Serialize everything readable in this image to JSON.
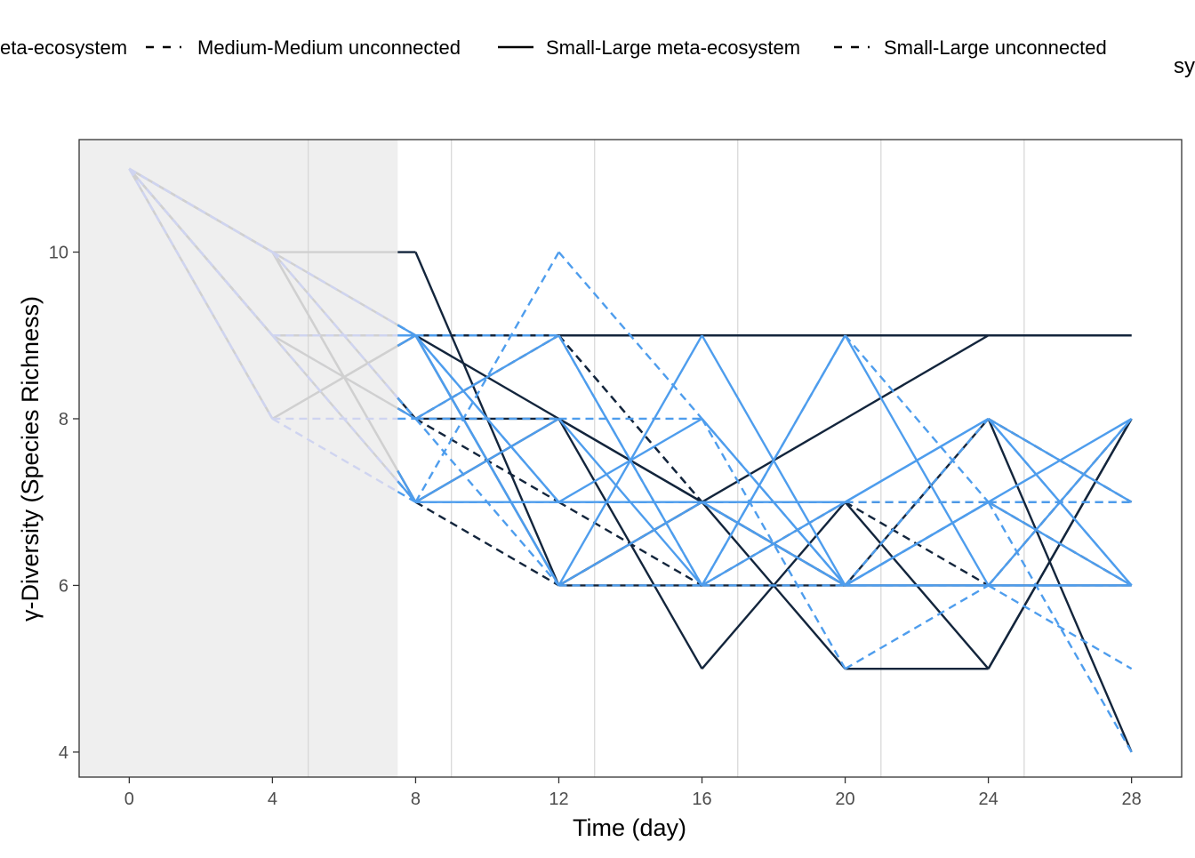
{
  "chart_data": {
    "type": "line",
    "xlabel": "Time (day)",
    "ylabel": "γ-Diversity (Species Richness)",
    "xlim": [
      -1.4,
      29.4
    ],
    "ylim": [
      3.7,
      11.35
    ],
    "x_ticks": [
      0,
      4,
      8,
      12,
      16,
      20,
      24,
      28
    ],
    "y_ticks": [
      4,
      6,
      8,
      10
    ],
    "x_minor_gridlines": [
      5,
      9,
      13,
      17,
      21,
      25
    ],
    "shaded_region": {
      "from": -1.4,
      "to": 7.5,
      "color": "#efefef"
    },
    "grid": "vertical only",
    "legend": {
      "position": "top",
      "entries": [
        {
          "label": "eta-ecosystem",
          "linetype": "solid"
        },
        {
          "label": "Medium-Medium unconnected",
          "linetype": "dashed"
        },
        {
          "label": "Small-Large meta-ecosystem",
          "linetype": "solid"
        },
        {
          "label": "Small-Large unconnected",
          "linetype": "dashed"
        }
      ],
      "extra_text": "sy"
    },
    "colors": {
      "dark": "#13253c",
      "light": "#4e9ded",
      "faded": "#d0d0d0",
      "faded_dashed": "#cfd4f0"
    },
    "x": [
      0,
      4,
      8,
      12,
      16,
      20,
      24,
      28
    ],
    "series": [
      {
        "color": "dark",
        "dash": false,
        "values": [
          11,
          10,
          10,
          6,
          6,
          6,
          6,
          6
        ]
      },
      {
        "color": "dark",
        "dash": false,
        "values": [
          11,
          9,
          9,
          9,
          9,
          9,
          9,
          9
        ]
      },
      {
        "color": "dark",
        "dash": false,
        "values": [
          11,
          8,
          9,
          8,
          7,
          8,
          9,
          9
        ]
      },
      {
        "color": "dark",
        "dash": false,
        "values": [
          11,
          10,
          7,
          8,
          5,
          7,
          5,
          8
        ]
      },
      {
        "color": "dark",
        "dash": false,
        "values": [
          11,
          9,
          9,
          6,
          7,
          5,
          5,
          8
        ]
      },
      {
        "color": "dark",
        "dash": false,
        "values": [
          11,
          10,
          8,
          8,
          7,
          6,
          8,
          4
        ]
      },
      {
        "color": "dark",
        "dash": true,
        "values": [
          11,
          10,
          9,
          9,
          7,
          6,
          7,
          7
        ]
      },
      {
        "color": "dark",
        "dash": true,
        "values": [
          11,
          9,
          8,
          7,
          6,
          7,
          6,
          8
        ]
      },
      {
        "color": "dark",
        "dash": true,
        "values": [
          11,
          9,
          7,
          6,
          7,
          6,
          8,
          7
        ]
      },
      {
        "color": "dark",
        "dash": true,
        "values": [
          11,
          10,
          8,
          9,
          7,
          7,
          7,
          6
        ]
      },
      {
        "color": "light",
        "dash": false,
        "values": [
          11,
          10,
          9,
          6,
          9,
          6,
          7,
          8
        ]
      },
      {
        "color": "light",
        "dash": false,
        "values": [
          11,
          9,
          7,
          8,
          6,
          7,
          8,
          6
        ]
      },
      {
        "color": "light",
        "dash": false,
        "values": [
          11,
          8,
          9,
          7,
          7,
          6,
          6,
          6
        ]
      },
      {
        "color": "light",
        "dash": false,
        "values": [
          11,
          9,
          8,
          9,
          6,
          9,
          6,
          8
        ]
      },
      {
        "color": "light",
        "dash": false,
        "values": [
          11,
          10,
          7,
          7,
          8,
          6,
          7,
          6
        ]
      },
      {
        "color": "light",
        "dash": false,
        "values": [
          11,
          9,
          9,
          6,
          7,
          7,
          8,
          7
        ]
      },
      {
        "color": "light",
        "dash": true,
        "values": [
          11,
          10,
          9,
          9,
          6,
          6,
          7,
          7
        ]
      },
      {
        "color": "light",
        "dash": true,
        "values": [
          11,
          9,
          7,
          10,
          8,
          6,
          6,
          5
        ]
      },
      {
        "color": "light",
        "dash": true,
        "values": [
          11,
          8,
          8,
          8,
          8,
          5,
          6,
          6
        ]
      },
      {
        "color": "light",
        "dash": true,
        "values": [
          11,
          9,
          9,
          7,
          7,
          6,
          8,
          6
        ]
      },
      {
        "color": "light",
        "dash": true,
        "values": [
          11,
          10,
          8,
          6,
          6,
          9,
          7,
          4
        ]
      },
      {
        "color": "light",
        "dash": true,
        "values": [
          11,
          8,
          7,
          7,
          7,
          7,
          7,
          7
        ]
      }
    ]
  }
}
